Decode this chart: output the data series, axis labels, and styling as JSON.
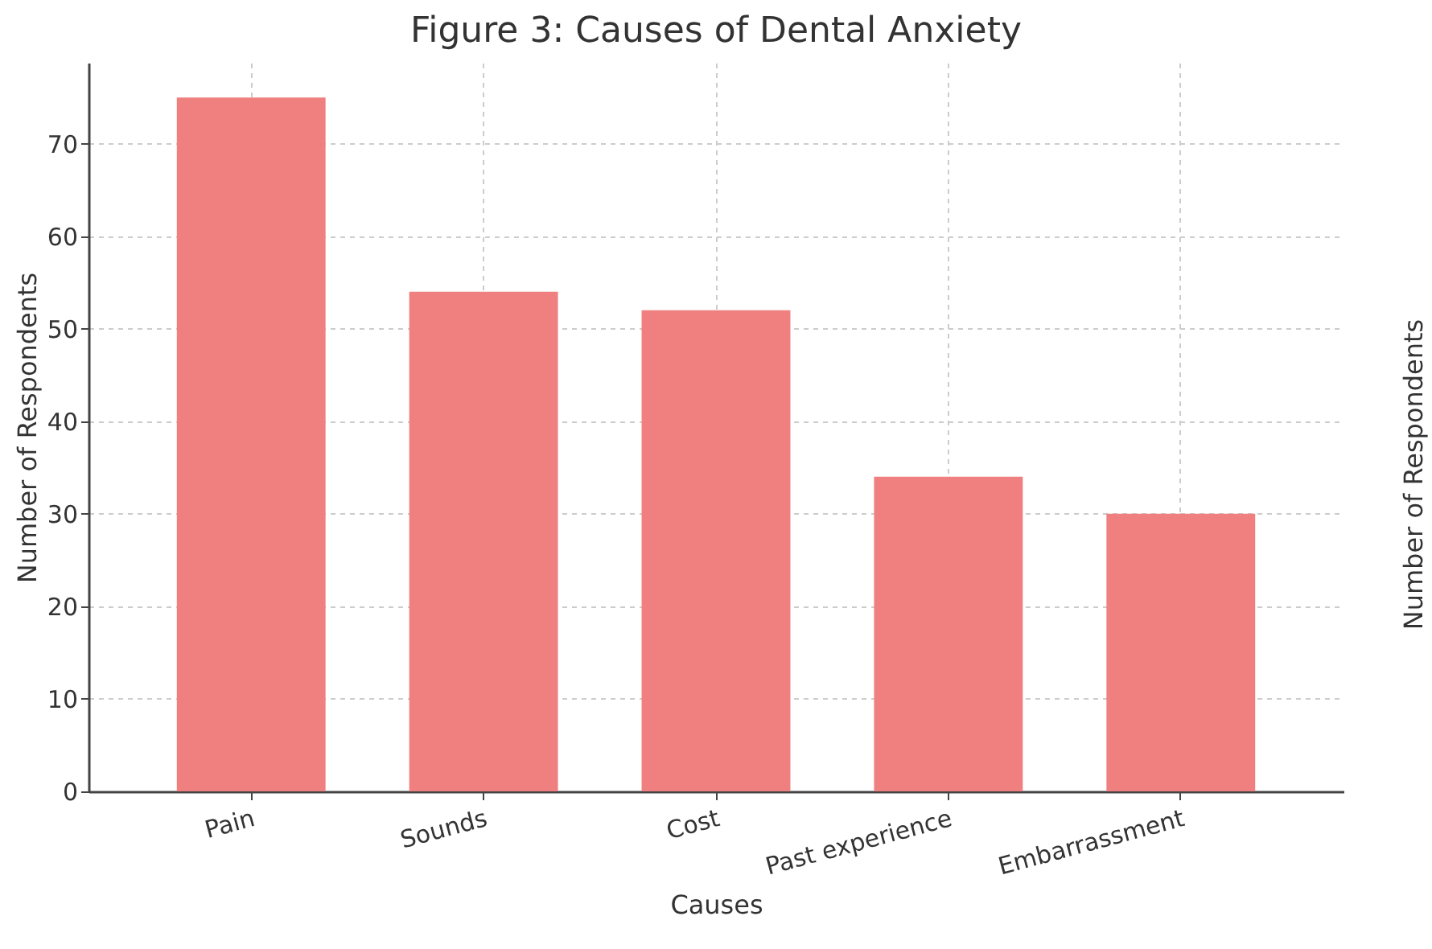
{
  "chart_data": {
    "type": "bar",
    "title": "Figure 3: Causes of Dental Anxiety",
    "xlabel": "Causes",
    "ylabel": "Number of Respondents",
    "y2label": "Number of Respondents",
    "categories": [
      "Pain",
      "Sounds",
      "Cost",
      "Past experience",
      "Embarrassment"
    ],
    "values": [
      75,
      54,
      52,
      34,
      30
    ],
    "color": "#f08080",
    "ylim": [
      0,
      78.75
    ],
    "yticks": [
      0,
      10,
      20,
      30,
      40,
      50,
      60,
      70
    ],
    "grid": true
  }
}
